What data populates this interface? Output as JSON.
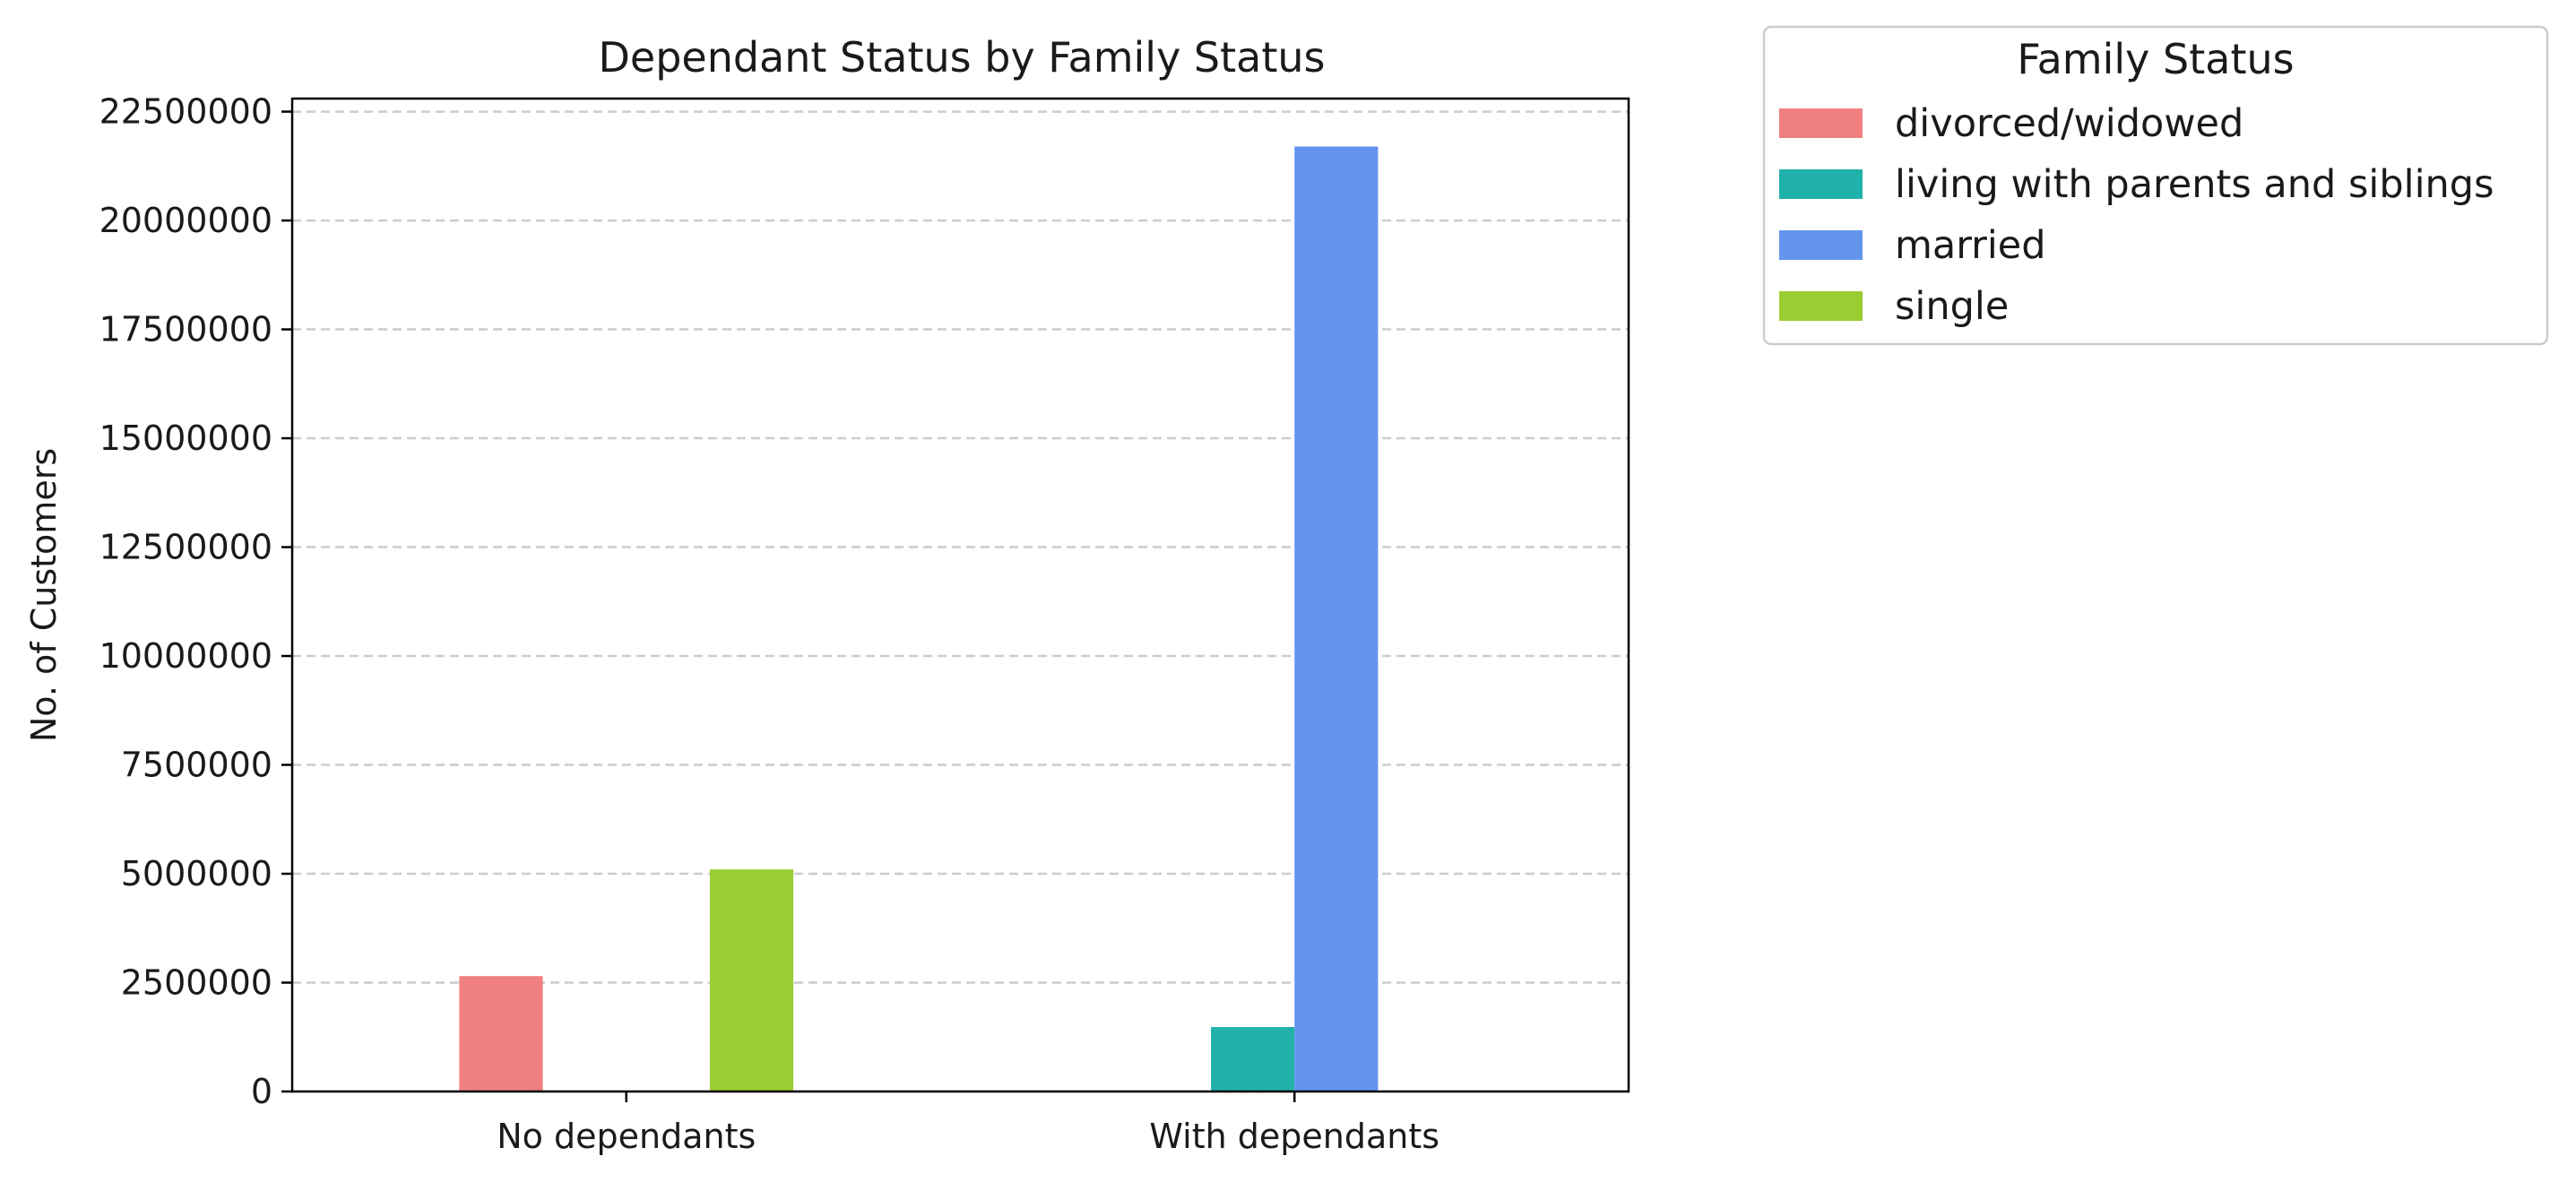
{
  "chart_data": {
    "type": "bar",
    "title": "Dependant Status by Family Status",
    "xlabel": "",
    "ylabel": "No. of Customers",
    "categories": [
      "No dependants",
      "With dependants"
    ],
    "series": [
      {
        "name": "divorced/widowed",
        "color": "#f08080",
        "values": [
          2650000,
          0
        ]
      },
      {
        "name": "living with parents and siblings",
        "color": "#20b2aa",
        "values": [
          0,
          1480000
        ]
      },
      {
        "name": "married",
        "color": "#6495ed",
        "values": [
          0,
          21700000
        ]
      },
      {
        "name": "single",
        "color": "#9acd32",
        "values": [
          5100000,
          0
        ]
      }
    ],
    "ylim": [
      0,
      22800000
    ],
    "yticks": [
      0,
      2500000,
      5000000,
      7500000,
      10000000,
      12500000,
      15000000,
      17500000,
      20000000,
      22500000
    ],
    "ytick_labels": [
      "0",
      "2500000",
      "5000000",
      "7500000",
      "10000000",
      "12500000",
      "15000000",
      "17500000",
      "20000000",
      "22500000"
    ],
    "grid": {
      "axis": "y",
      "style": "dashed"
    },
    "legend": {
      "title": "Family Status",
      "placement": "outside-top-right"
    }
  }
}
